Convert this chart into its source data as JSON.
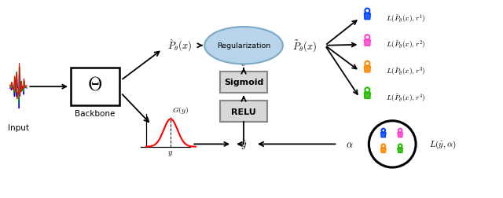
{
  "bg_color": "#ffffff",
  "annotator_colors": [
    "#0044ff",
    "#ff44cc",
    "#ff8800",
    "#22bb00"
  ],
  "regularization_color": "#b8d4ea",
  "regularization_edge": "#7aaac8",
  "box_facecolor": "#d8d8d8",
  "box_edgecolor": "#888888",
  "signal_colors": [
    "#0000ff",
    "#00aa00",
    "#ff0000"
  ],
  "gauss_color": "#ff0000",
  "labels": {
    "input": "Input",
    "backbone": "Backbone",
    "theta": "$\\Theta$",
    "regularization": "Regularization",
    "sigmoid": "Sigmoid",
    "relu": "RELU",
    "p_hat": "$\\hat{P}_{\\theta}(x)$",
    "p_tilde": "$\\tilde{P}_{\\theta}(x)$",
    "y_tilde": "$\\tilde{y}$",
    "y_hat": "$\\hat{y}$",
    "alpha": "$\\alpha$",
    "Gy": "$G(y)$",
    "y_axis": "$y$",
    "L_hat": "$L(\\hat{y}, \\alpha)$"
  },
  "loss_labels": [
    "$L(\\tilde{P}_{\\theta}(x), r^1)$",
    "$L(\\tilde{P}_{\\theta}(x), r^2)$",
    "$L(\\tilde{P}_{\\theta}(x), r^3)$",
    "$L(\\tilde{P}_{\\theta}(x), r^4)$"
  ],
  "r_superscripts": [
    "1",
    "2",
    "3",
    "4"
  ],
  "r_colors": [
    "#0044ff",
    "#ff44cc",
    "#ff8800",
    "#22bb00"
  ]
}
